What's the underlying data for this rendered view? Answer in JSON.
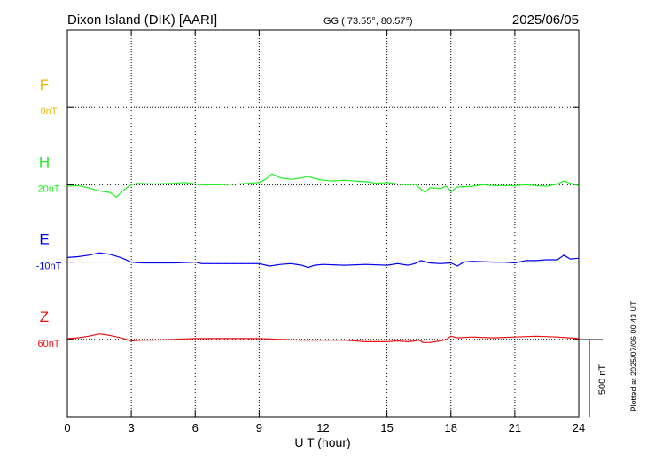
{
  "header": {
    "station": "Dixon Island (DIK)  [AARI]",
    "coords": "GG ( 73.55°,  80.57°)",
    "date": "2025/06/05"
  },
  "chart_data": {
    "type": "line",
    "xlabel": "U T (hour)",
    "xlim": [
      0,
      24
    ],
    "xticks": [
      0,
      3,
      6,
      9,
      12,
      15,
      18,
      21,
      24
    ],
    "scale_bar_label": "500 nT",
    "scale_bar_nT": 500,
    "plotted_note": "Plotted at 2025/07/06 00:43 UT",
    "grid": true,
    "series": [
      {
        "name": "F",
        "offset_label": "0nT",
        "color": "#f0b400",
        "baseline_band": 1,
        "points": []
      },
      {
        "name": "H",
        "offset_label": "20nT",
        "color": "#22ee22",
        "baseline_band": 2,
        "points": [
          [
            0,
            -10
          ],
          [
            0.5,
            -5
          ],
          [
            1,
            -20
          ],
          [
            1.5,
            -40
          ],
          [
            2,
            -50
          ],
          [
            2.3,
            -80
          ],
          [
            2.6,
            -40
          ],
          [
            3,
            0
          ],
          [
            3.3,
            10
          ],
          [
            4,
            5
          ],
          [
            5,
            10
          ],
          [
            5.5,
            15
          ],
          [
            6,
            5
          ],
          [
            6.3,
            0
          ],
          [
            7,
            0
          ],
          [
            8,
            5
          ],
          [
            8.5,
            10
          ],
          [
            9,
            15
          ],
          [
            9.3,
            35
          ],
          [
            9.6,
            70
          ],
          [
            10,
            45
          ],
          [
            10.5,
            35
          ],
          [
            11,
            45
          ],
          [
            11.3,
            55
          ],
          [
            11.6,
            40
          ],
          [
            12,
            30
          ],
          [
            12.5,
            25
          ],
          [
            13,
            30
          ],
          [
            13.5,
            25
          ],
          [
            14,
            20
          ],
          [
            14.5,
            10
          ],
          [
            15,
            15
          ],
          [
            15.5,
            5
          ],
          [
            16,
            0
          ],
          [
            16.3,
            5
          ],
          [
            16.6,
            -30
          ],
          [
            16.8,
            -50
          ],
          [
            17,
            -20
          ],
          [
            17.5,
            -25
          ],
          [
            17.8,
            -10
          ],
          [
            18,
            -45
          ],
          [
            18.3,
            -15
          ],
          [
            19,
            -10
          ],
          [
            19.5,
            0
          ],
          [
            20,
            -5
          ],
          [
            21,
            -5
          ],
          [
            21.5,
            0
          ],
          [
            22,
            -5
          ],
          [
            22.5,
            -10
          ],
          [
            23,
            5
          ],
          [
            23.3,
            25
          ],
          [
            23.6,
            10
          ],
          [
            24,
            -5
          ]
        ]
      },
      {
        "name": "E",
        "offset_label": "-10nT",
        "color": "#0000ee",
        "baseline_band": 3,
        "points": [
          [
            0,
            30
          ],
          [
            0.5,
            35
          ],
          [
            1,
            45
          ],
          [
            1.5,
            60
          ],
          [
            2,
            50
          ],
          [
            2.5,
            30
          ],
          [
            3,
            0
          ],
          [
            3.5,
            -5
          ],
          [
            4,
            -5
          ],
          [
            5,
            -5
          ],
          [
            6,
            0
          ],
          [
            6.3,
            -10
          ],
          [
            7,
            -10
          ],
          [
            8,
            -10
          ],
          [
            9,
            -10
          ],
          [
            9.5,
            -25
          ],
          [
            10,
            -15
          ],
          [
            10.5,
            -10
          ],
          [
            11,
            -20
          ],
          [
            11.3,
            -35
          ],
          [
            11.6,
            -20
          ],
          [
            12,
            -15
          ],
          [
            13,
            -20
          ],
          [
            14,
            -15
          ],
          [
            15,
            -20
          ],
          [
            15.5,
            -10
          ],
          [
            16,
            -20
          ],
          [
            16.3,
            -10
          ],
          [
            16.6,
            10
          ],
          [
            17,
            -5
          ],
          [
            17.5,
            -10
          ],
          [
            18,
            -5
          ],
          [
            18.3,
            -25
          ],
          [
            18.6,
            0
          ],
          [
            19,
            5
          ],
          [
            20,
            0
          ],
          [
            20.5,
            0
          ],
          [
            21,
            -5
          ],
          [
            21.5,
            10
          ],
          [
            22,
            10
          ],
          [
            22.5,
            15
          ],
          [
            23,
            15
          ],
          [
            23.3,
            45
          ],
          [
            23.6,
            20
          ],
          [
            24,
            25
          ]
        ]
      },
      {
        "name": "Z",
        "offset_label": "60nT",
        "color": "#ee1111",
        "baseline_band": 4,
        "points": [
          [
            0,
            5
          ],
          [
            0.5,
            10
          ],
          [
            1,
            20
          ],
          [
            1.5,
            35
          ],
          [
            2,
            25
          ],
          [
            2.5,
            10
          ],
          [
            3,
            -10
          ],
          [
            3.5,
            -5
          ],
          [
            4,
            -5
          ],
          [
            5,
            0
          ],
          [
            6,
            5
          ],
          [
            7,
            5
          ],
          [
            8,
            5
          ],
          [
            9,
            5
          ],
          [
            10,
            0
          ],
          [
            11,
            -5
          ],
          [
            12,
            -5
          ],
          [
            13,
            -5
          ],
          [
            14,
            -15
          ],
          [
            15,
            -15
          ],
          [
            15.5,
            -10
          ],
          [
            16,
            -15
          ],
          [
            16.3,
            -10
          ],
          [
            16.5,
            -5
          ],
          [
            16.7,
            -20
          ],
          [
            17,
            -20
          ],
          [
            17.5,
            -10
          ],
          [
            17.8,
            0
          ],
          [
            18,
            20
          ],
          [
            18.3,
            10
          ],
          [
            19,
            15
          ],
          [
            20,
            10
          ],
          [
            21,
            15
          ],
          [
            22,
            20
          ],
          [
            23,
            15
          ],
          [
            24,
            5
          ]
        ]
      }
    ]
  }
}
